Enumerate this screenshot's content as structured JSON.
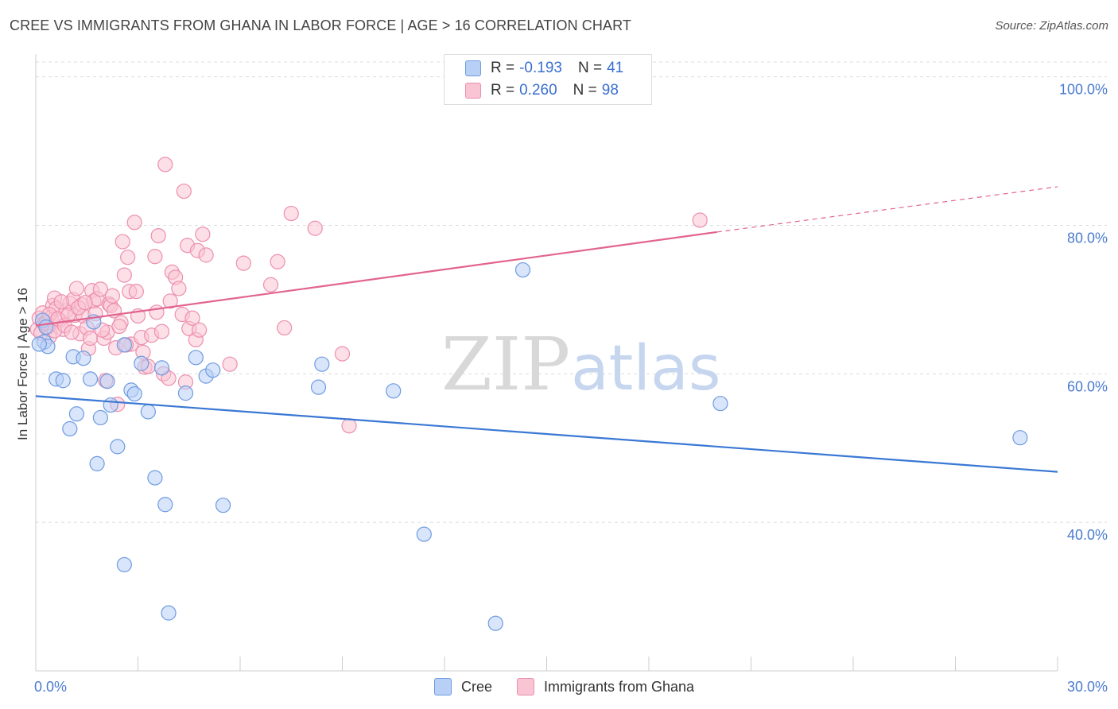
{
  "title": "CREE VS IMMIGRANTS FROM GHANA IN LABOR FORCE | AGE > 16 CORRELATION CHART",
  "source": "Source: ZipAtlas.com",
  "watermark": {
    "zip": "ZIP",
    "atlas": "atlas"
  },
  "legend": {
    "cree": {
      "r_label": "R =",
      "r_value": "-0.193",
      "n_label": "N =",
      "n_value": "41"
    },
    "ghana": {
      "r_label": "R =",
      "r_value": "0.260",
      "n_label": "N =",
      "n_value": "98"
    }
  },
  "colors": {
    "cree_fill": "#b8d0f5",
    "cree_stroke": "#6f9be0",
    "cree_line": "#3a78d4",
    "ghana_fill": "#f9c4d4",
    "ghana_stroke": "#ec8fae",
    "ghana_line": "#e2648f",
    "tick_text": "#4a7bd0"
  },
  "chart_data": {
    "type": "scatter",
    "ylabel": "In Labor Force | Age > 16",
    "xlim": [
      0,
      30
    ],
    "ylim": [
      20,
      102
    ],
    "x_tick_labels": {
      "left": "0.0%",
      "right": "30.0%"
    },
    "y_ticks": [
      {
        "value": 40,
        "label": "40.0%"
      },
      {
        "value": 60,
        "label": "60.0%"
      },
      {
        "value": 80,
        "label": "80.0%"
      },
      {
        "value": 100,
        "label": "100.0%"
      }
    ],
    "series": [
      {
        "name": "Cree",
        "trend": {
          "x0": 0,
          "y0": 57.0,
          "x1": 30,
          "y1": 46.8,
          "dashed_from": null
        },
        "points": [
          [
            0.2,
            67.2
          ],
          [
            0.25,
            64.3
          ],
          [
            0.35,
            63.7
          ],
          [
            0.6,
            59.3
          ],
          [
            0.8,
            59.1
          ],
          [
            1.1,
            62.3
          ],
          [
            1.2,
            54.6
          ],
          [
            1.4,
            62.1
          ],
          [
            1.6,
            59.3
          ],
          [
            1.7,
            67.0
          ],
          [
            1.0,
            52.6
          ],
          [
            1.8,
            47.9
          ],
          [
            1.9,
            54.1
          ],
          [
            2.1,
            59.0
          ],
          [
            2.2,
            55.8
          ],
          [
            2.4,
            50.2
          ],
          [
            2.6,
            63.9
          ],
          [
            2.8,
            57.8
          ],
          [
            2.9,
            57.3
          ],
          [
            3.1,
            61.4
          ],
          [
            3.3,
            54.9
          ],
          [
            3.5,
            46.0
          ],
          [
            3.7,
            60.8
          ],
          [
            3.8,
            42.4
          ],
          [
            2.6,
            34.3
          ],
          [
            3.9,
            27.8
          ],
          [
            4.4,
            57.4
          ],
          [
            4.7,
            62.2
          ],
          [
            5.0,
            59.7
          ],
          [
            5.2,
            60.5
          ],
          [
            5.5,
            42.3
          ],
          [
            8.3,
            58.2
          ],
          [
            8.4,
            61.3
          ],
          [
            10.5,
            57.7
          ],
          [
            11.4,
            38.4
          ],
          [
            13.5,
            26.4
          ],
          [
            14.3,
            74.0
          ],
          [
            20.1,
            56.0
          ],
          [
            28.9,
            51.4
          ],
          [
            0.1,
            64.0
          ],
          [
            0.3,
            66.3
          ]
        ]
      },
      {
        "name": "Immigrants from Ghana",
        "trend": {
          "x0": 0,
          "y0": 66.5,
          "x1": 20.0,
          "y1": 79.1,
          "dashed_to": [
            30,
            85.2
          ]
        },
        "points": [
          [
            0.05,
            66.0
          ],
          [
            0.1,
            67.5
          ],
          [
            0.15,
            65.5
          ],
          [
            0.2,
            68.2
          ],
          [
            0.25,
            66.8
          ],
          [
            0.3,
            67.0
          ],
          [
            0.35,
            66.2
          ],
          [
            0.4,
            65.0
          ],
          [
            0.45,
            67.6
          ],
          [
            0.5,
            69.2
          ],
          [
            0.55,
            70.2
          ],
          [
            0.6,
            68.8
          ],
          [
            0.7,
            67.2
          ],
          [
            0.8,
            66.0
          ],
          [
            0.9,
            68.5
          ],
          [
            1.0,
            69.5
          ],
          [
            1.1,
            70.0
          ],
          [
            1.15,
            67.9
          ],
          [
            1.2,
            71.5
          ],
          [
            1.3,
            65.4
          ],
          [
            1.35,
            69.3
          ],
          [
            1.4,
            67.8
          ],
          [
            1.5,
            66.2
          ],
          [
            1.55,
            63.4
          ],
          [
            1.6,
            64.8
          ],
          [
            1.65,
            71.2
          ],
          [
            1.7,
            69.8
          ],
          [
            1.8,
            70.1
          ],
          [
            1.9,
            71.4
          ],
          [
            2.0,
            64.8
          ],
          [
            2.05,
            59.1
          ],
          [
            2.1,
            65.6
          ],
          [
            2.15,
            69.4
          ],
          [
            2.2,
            69.2
          ],
          [
            2.3,
            68.5
          ],
          [
            2.35,
            63.5
          ],
          [
            2.4,
            55.9
          ],
          [
            2.5,
            66.9
          ],
          [
            2.55,
            77.8
          ],
          [
            2.6,
            73.3
          ],
          [
            2.7,
            75.7
          ],
          [
            2.75,
            71.1
          ],
          [
            2.8,
            64.0
          ],
          [
            2.9,
            80.4
          ],
          [
            2.95,
            71.1
          ],
          [
            3.0,
            67.8
          ],
          [
            3.1,
            64.9
          ],
          [
            3.2,
            60.9
          ],
          [
            3.3,
            61.0
          ],
          [
            3.4,
            65.2
          ],
          [
            3.5,
            75.8
          ],
          [
            3.55,
            68.3
          ],
          [
            3.6,
            78.6
          ],
          [
            3.7,
            65.7
          ],
          [
            3.75,
            60.0
          ],
          [
            3.8,
            88.2
          ],
          [
            3.9,
            59.4
          ],
          [
            3.95,
            69.8
          ],
          [
            4.0,
            73.7
          ],
          [
            4.1,
            73.0
          ],
          [
            4.2,
            71.5
          ],
          [
            4.3,
            68.0
          ],
          [
            4.35,
            84.6
          ],
          [
            4.4,
            58.9
          ],
          [
            4.45,
            77.3
          ],
          [
            4.5,
            66.1
          ],
          [
            4.6,
            67.5
          ],
          [
            4.7,
            64.6
          ],
          [
            4.75,
            76.6
          ],
          [
            4.8,
            65.9
          ],
          [
            4.9,
            78.8
          ],
          [
            5.0,
            76.0
          ],
          [
            5.7,
            61.3
          ],
          [
            6.1,
            74.9
          ],
          [
            6.9,
            72.0
          ],
          [
            7.1,
            75.1
          ],
          [
            7.3,
            66.2
          ],
          [
            7.5,
            81.6
          ],
          [
            8.2,
            79.6
          ],
          [
            9.0,
            62.7
          ],
          [
            9.2,
            53.0
          ],
          [
            19.5,
            80.7
          ],
          [
            0.3,
            66.8
          ],
          [
            0.4,
            68.0
          ],
          [
            0.55,
            65.8
          ],
          [
            0.65,
            67.4
          ],
          [
            0.75,
            69.7
          ],
          [
            0.85,
            66.5
          ],
          [
            0.95,
            67.9
          ],
          [
            1.05,
            65.6
          ],
          [
            1.25,
            68.9
          ],
          [
            1.45,
            69.6
          ],
          [
            1.75,
            68.1
          ],
          [
            1.95,
            65.9
          ],
          [
            2.25,
            70.5
          ],
          [
            2.45,
            66.4
          ],
          [
            2.65,
            63.9
          ],
          [
            3.15,
            62.9
          ]
        ]
      }
    ]
  },
  "bottom_legend": {
    "cree": "Cree",
    "ghana": "Immigrants from Ghana"
  }
}
